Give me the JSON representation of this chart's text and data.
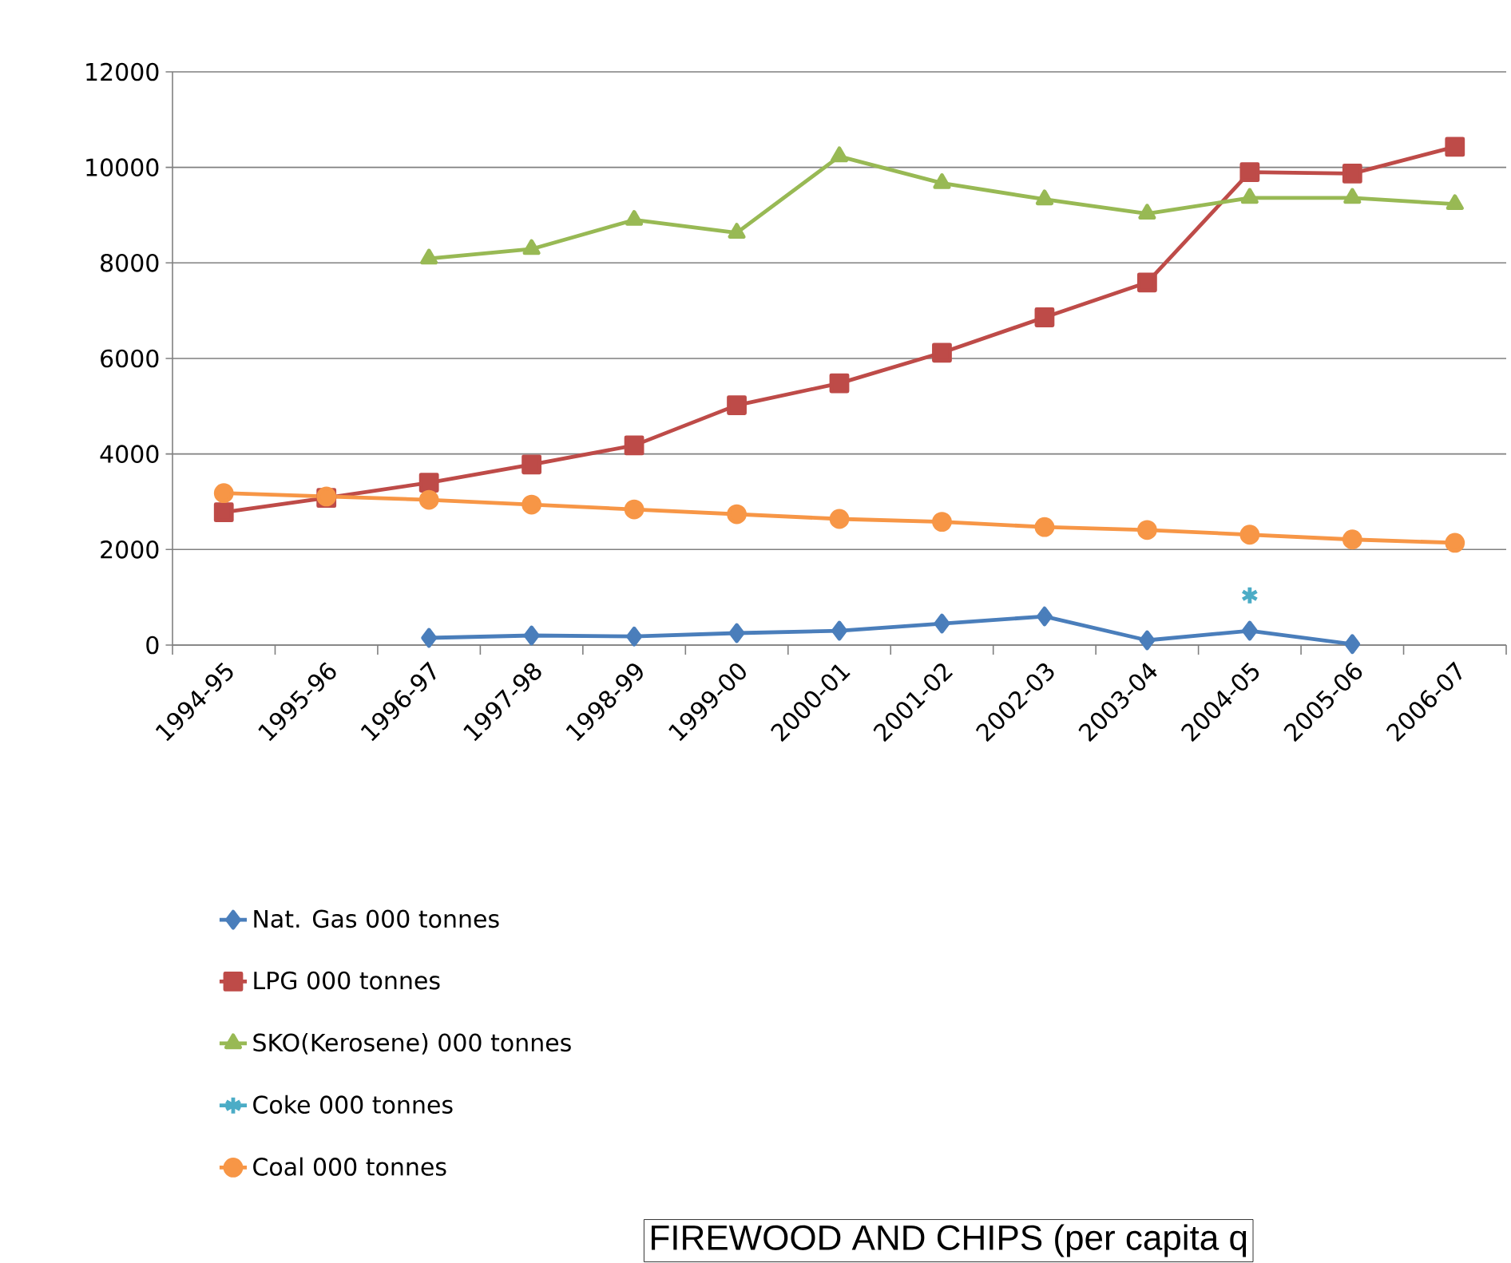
{
  "chart_data": {
    "type": "line",
    "categories": [
      "1994-95",
      "1995-96",
      "1996-97",
      "1997-98",
      "1998-99",
      "1999-00",
      "2000-01",
      "2001-02",
      "2002-03",
      "2003-04",
      "2004-05",
      "2005-06",
      "2006-07"
    ],
    "series": [
      {
        "name": "Nat. Gas 000 tonnes",
        "color": "#4a7ebb",
        "marker": "diamond",
        "values": [
          null,
          null,
          150,
          200,
          180,
          250,
          300,
          450,
          600,
          100,
          300,
          20,
          null
        ]
      },
      {
        "name": "LPG 000 tonnes",
        "color": "#be4b48",
        "marker": "square",
        "values": [
          2780,
          3080,
          3400,
          3780,
          4180,
          5020,
          5480,
          6120,
          6860,
          7590,
          9900,
          9870,
          10430
        ]
      },
      {
        "name": "SKO(Kerosene) 000 tonnes",
        "color": "#98b954",
        "marker": "triangle",
        "values": [
          null,
          null,
          8090,
          8290,
          8900,
          8630,
          10230,
          9670,
          9330,
          9030,
          9360,
          9360,
          9230
        ]
      },
      {
        "name": "Coke 000 tonnes",
        "color": "#4bacc6",
        "marker": "cross",
        "values": [
          null,
          null,
          null,
          null,
          null,
          null,
          null,
          null,
          null,
          null,
          1040,
          null,
          null
        ]
      },
      {
        "name": "Coal 000 tonnes",
        "color": "#f79646",
        "marker": "circle",
        "values": [
          3180,
          3110,
          3040,
          2940,
          2840,
          2740,
          2640,
          2580,
          2470,
          2410,
          2310,
          2210,
          2140
        ]
      }
    ],
    "ylim": [
      0,
      12000
    ],
    "yticks": [
      0,
      2000,
      4000,
      6000,
      8000,
      10000,
      12000
    ],
    "grid": "y",
    "legend": "bottom",
    "line_style": "solid",
    "annotations": [
      "FIREWOOD AND CHIPS (per capita q"
    ]
  }
}
